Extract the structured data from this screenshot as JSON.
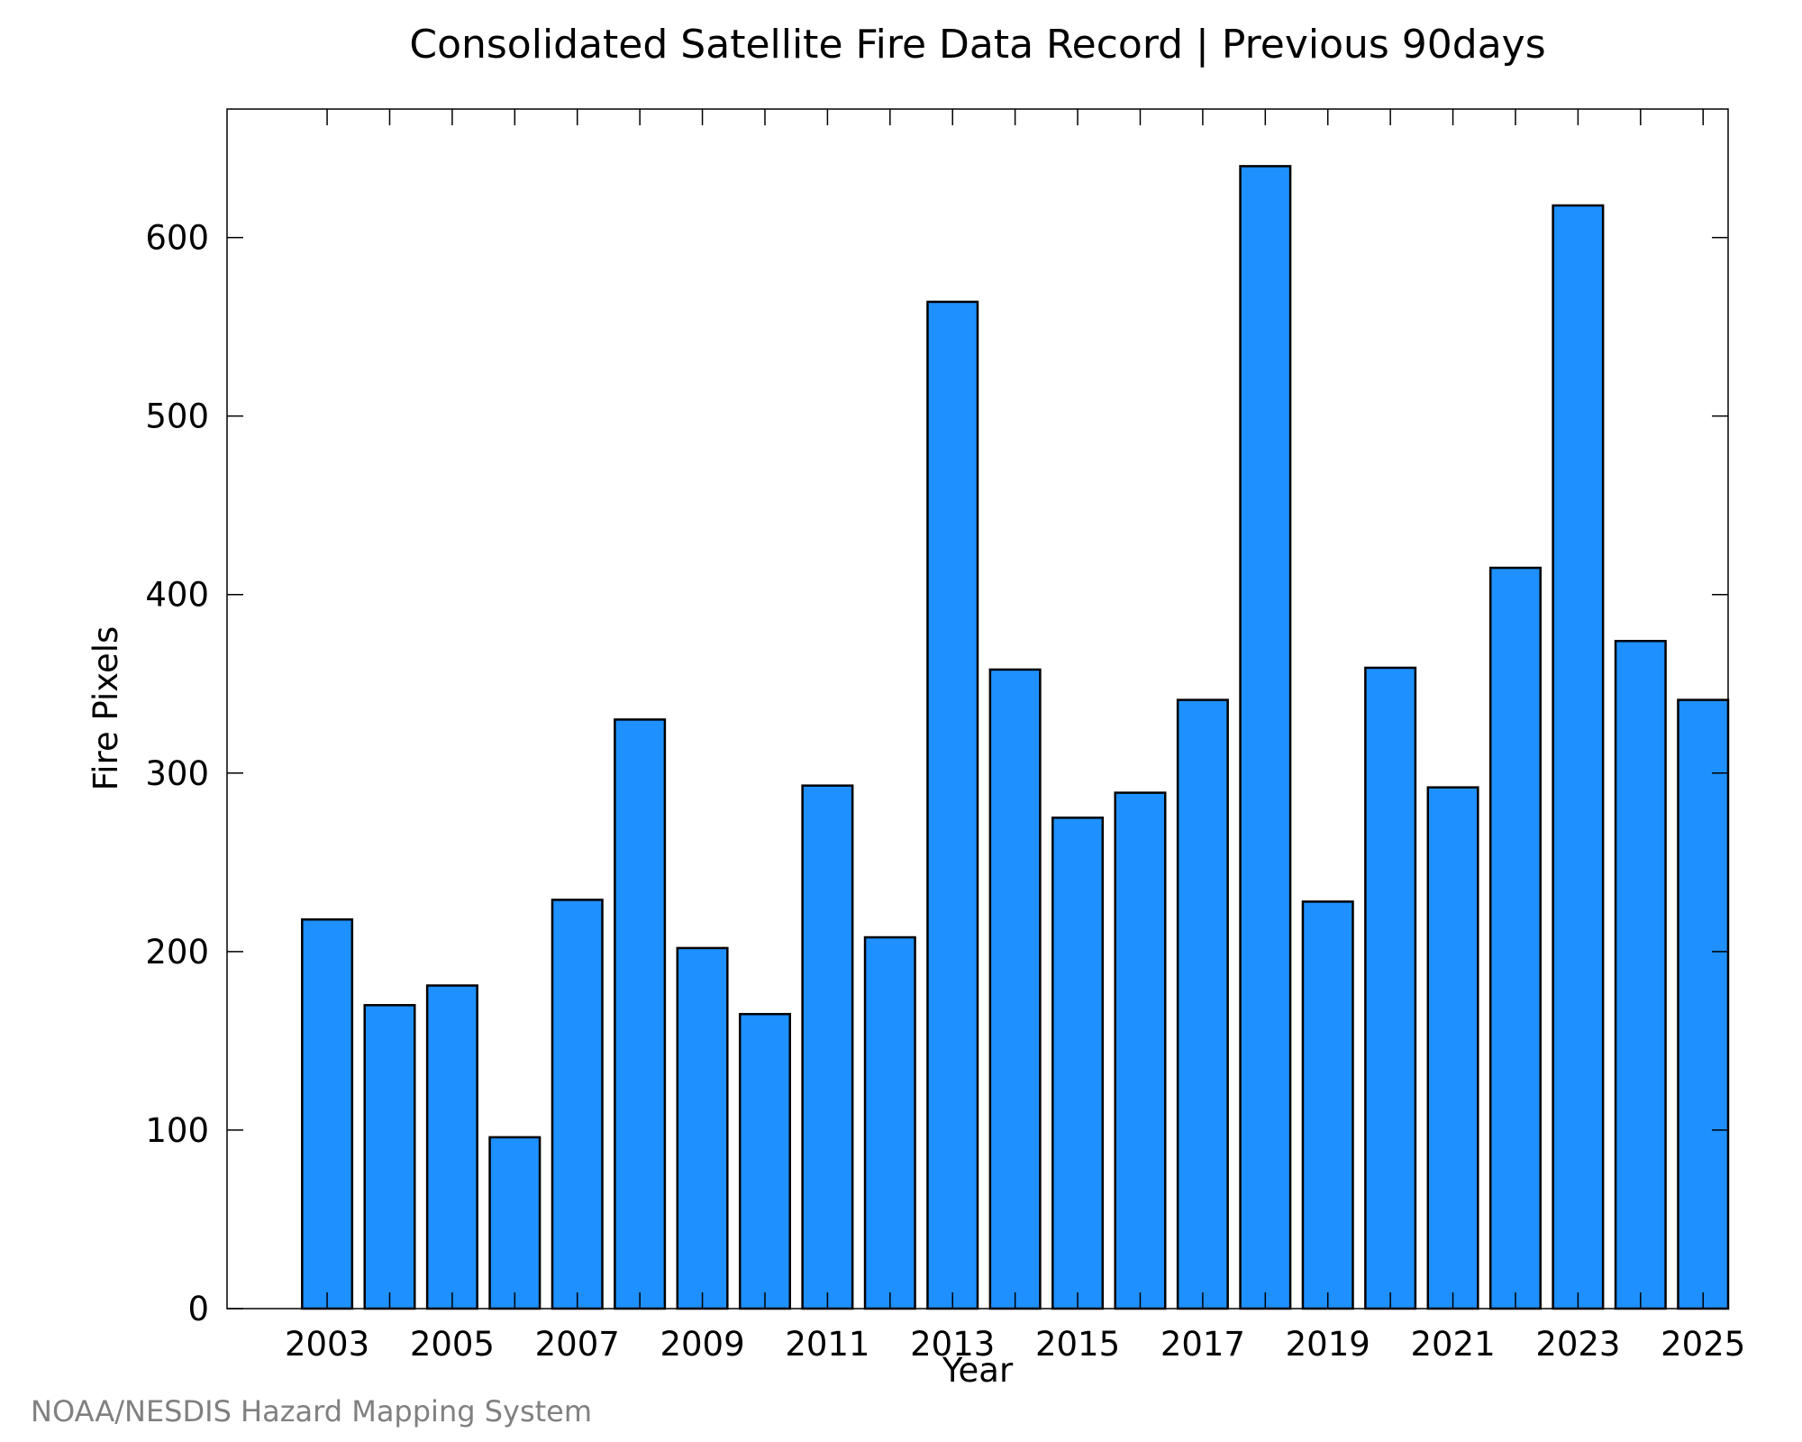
{
  "chart_data": {
    "type": "bar",
    "title": "Consolidated Satellite Fire Data Record | Previous 90days",
    "xlabel": "Year",
    "ylabel": "Fire Pixels",
    "categories": [
      2003,
      2004,
      2005,
      2006,
      2007,
      2008,
      2009,
      2010,
      2011,
      2012,
      2013,
      2014,
      2015,
      2016,
      2017,
      2018,
      2019,
      2020,
      2021,
      2022,
      2023,
      2024,
      2025
    ],
    "values": [
      218,
      170,
      181,
      96,
      229,
      330,
      202,
      165,
      293,
      208,
      564,
      358,
      275,
      289,
      341,
      640,
      228,
      359,
      292,
      415,
      618,
      374,
      341
    ],
    "x_tick_labels": [
      "2003",
      "2005",
      "2007",
      "2009",
      "2011",
      "2013",
      "2015",
      "2017",
      "2019",
      "2021",
      "2023",
      "2025"
    ],
    "y_ticks": [
      0,
      100,
      200,
      300,
      400,
      500,
      600
    ],
    "xlim": [
      2001.4,
      2025.4
    ],
    "ylim": [
      0,
      672
    ],
    "grid": false,
    "legend": "none",
    "bar_color": "#1e90ff",
    "bar_edge_color": "#000000"
  },
  "credit": "NOAA/NESDIS Hazard Mapping System"
}
